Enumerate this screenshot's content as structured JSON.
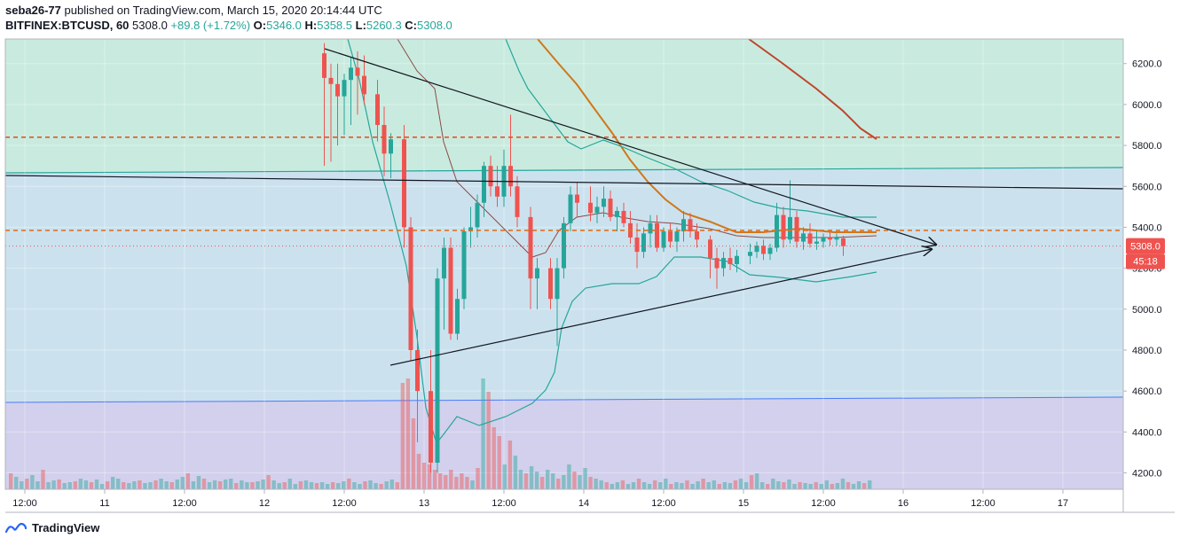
{
  "header": {
    "author": "seba26-77",
    "published_text": "published on TradingView.com, March 15, 2020 20:14:44 UTC",
    "symbol": "BITFINEX:BTCUSD, 60",
    "last": "5308.0",
    "change": "+89.8 (+1.72%)",
    "o_label": "O:",
    "o": "5346.0",
    "h_label": "H:",
    "h": "5358.5",
    "l_label": "L:",
    "l": "5260.3",
    "c_label": "C:",
    "c": "5308.0"
  },
  "footer": {
    "brand": "TradingView"
  },
  "colors": {
    "up": "#26a69a",
    "down": "#ef5350",
    "zone_top": "#c9ebdf",
    "zone_mid": "#cbe2ee",
    "zone_low": "#d2d0ec",
    "price_label_bg": "#ef5350"
  },
  "chart_data": {
    "type": "candlestick",
    "ylim": [
      4120,
      6320
    ],
    "y_ticks": [
      "6200.0",
      "6000.0",
      "5800.0",
      "5600.0",
      "5400.0",
      "5200.0",
      "5000.0",
      "4800.0",
      "4600.0",
      "4400.0",
      "4200.0"
    ],
    "x_ticks": [
      "12:00",
      "11",
      "12:00",
      "12",
      "12:00",
      "13",
      "12:00",
      "14",
      "12:00",
      "15",
      "12:00",
      "16",
      "12:00",
      "17"
    ],
    "last_price_label": "5308.0",
    "countdown_label": "45:18",
    "horizontal_levels": [
      {
        "name": "resistance-dashed",
        "value": 5840
      },
      {
        "name": "pivot-dashed",
        "value": 5385
      },
      {
        "name": "last-price-dotted",
        "value": 5308
      }
    ],
    "candles": [
      {
        "t": "12 09:00",
        "o": 6250,
        "h": 6300,
        "l": 5700,
        "c": 6130
      },
      {
        "t": "12 10:00",
        "o": 6130,
        "h": 6200,
        "l": 5720,
        "c": 6100
      },
      {
        "t": "12 11:00",
        "o": 6100,
        "h": 6200,
        "l": 5800,
        "c": 6040
      },
      {
        "t": "12 12:00",
        "o": 6040,
        "h": 6150,
        "l": 5850,
        "c": 6120
      },
      {
        "t": "12 13:00",
        "o": 6120,
        "h": 6230,
        "l": 5900,
        "c": 6180
      },
      {
        "t": "12 14:00",
        "o": 6180,
        "h": 6260,
        "l": 5950,
        "c": 6140
      },
      {
        "t": "12 15:00",
        "o": 6140,
        "h": 6240,
        "l": 6000,
        "c": 6050
      },
      {
        "t": "12 17:00",
        "o": 6050,
        "h": 6120,
        "l": 5820,
        "c": 5900
      },
      {
        "t": "12 18:00",
        "o": 5900,
        "h": 5990,
        "l": 5650,
        "c": 5760
      },
      {
        "t": "12 19:00",
        "o": 5760,
        "h": 5860,
        "l": 5640,
        "c": 5830
      },
      {
        "t": "12 21:00",
        "o": 5830,
        "h": 5900,
        "l": 5300,
        "c": 5400
      },
      {
        "t": "12 22:00",
        "o": 5400,
        "h": 5450,
        "l": 4750,
        "c": 4800
      },
      {
        "t": "12 23:00",
        "o": 4800,
        "h": 4900,
        "l": 4350,
        "c": 4600
      },
      {
        "t": "13 01:00",
        "o": 4600,
        "h": 4800,
        "l": 4200,
        "c": 4250
      },
      {
        "t": "13 02:00",
        "o": 4250,
        "h": 5200,
        "l": 4200,
        "c": 5150
      },
      {
        "t": "13 03:00",
        "o": 5150,
        "h": 5350,
        "l": 4900,
        "c": 5300
      },
      {
        "t": "13 04:00",
        "o": 5300,
        "h": 5350,
        "l": 4850,
        "c": 4880
      },
      {
        "t": "13 05:00",
        "o": 4880,
        "h": 5100,
        "l": 4850,
        "c": 5050
      },
      {
        "t": "13 06:00",
        "o": 5050,
        "h": 5400,
        "l": 5000,
        "c": 5380
      },
      {
        "t": "13 07:00",
        "o": 5380,
        "h": 5500,
        "l": 5300,
        "c": 5400
      },
      {
        "t": "13 08:00",
        "o": 5400,
        "h": 5560,
        "l": 5350,
        "c": 5520
      },
      {
        "t": "13 09:00",
        "o": 5520,
        "h": 5720,
        "l": 5450,
        "c": 5700
      },
      {
        "t": "13 10:00",
        "o": 5700,
        "h": 5750,
        "l": 5550,
        "c": 5600
      },
      {
        "t": "13 11:00",
        "o": 5600,
        "h": 5700,
        "l": 5500,
        "c": 5550
      },
      {
        "t": "13 12:00",
        "o": 5550,
        "h": 5780,
        "l": 5500,
        "c": 5700
      },
      {
        "t": "13 13:00",
        "o": 5700,
        "h": 5950,
        "l": 5550,
        "c": 5600
      },
      {
        "t": "13 14:00",
        "o": 5600,
        "h": 5650,
        "l": 5400,
        "c": 5450
      },
      {
        "t": "13 16:00",
        "o": 5450,
        "h": 5500,
        "l": 5000,
        "c": 5150
      },
      {
        "t": "13 17:00",
        "o": 5150,
        "h": 5250,
        "l": 5000,
        "c": 5200
      },
      {
        "t": "13 19:00",
        "o": 5200,
        "h": 5250,
        "l": 5000,
        "c": 5050
      },
      {
        "t": "13 20:00",
        "o": 5050,
        "h": 5250,
        "l": 4820,
        "c": 5200
      },
      {
        "t": "13 21:00",
        "o": 5200,
        "h": 5450,
        "l": 5150,
        "c": 5420
      },
      {
        "t": "13 22:00",
        "o": 5420,
        "h": 5600,
        "l": 5380,
        "c": 5560
      },
      {
        "t": "13 23:00",
        "o": 5560,
        "h": 5620,
        "l": 5450,
        "c": 5520
      },
      {
        "t": "14 01:00",
        "o": 5520,
        "h": 5600,
        "l": 5430,
        "c": 5470
      },
      {
        "t": "14 02:00",
        "o": 5470,
        "h": 5550,
        "l": 5420,
        "c": 5500
      },
      {
        "t": "14 03:00",
        "o": 5500,
        "h": 5600,
        "l": 5450,
        "c": 5540
      },
      {
        "t": "14 04:00",
        "o": 5540,
        "h": 5580,
        "l": 5430,
        "c": 5450
      },
      {
        "t": "14 05:00",
        "o": 5450,
        "h": 5500,
        "l": 5380,
        "c": 5480
      },
      {
        "t": "14 06:00",
        "o": 5480,
        "h": 5520,
        "l": 5400,
        "c": 5420
      },
      {
        "t": "14 07:00",
        "o": 5420,
        "h": 5480,
        "l": 5320,
        "c": 5350
      },
      {
        "t": "14 08:00",
        "o": 5350,
        "h": 5420,
        "l": 5200,
        "c": 5280
      },
      {
        "t": "14 09:00",
        "o": 5280,
        "h": 5400,
        "l": 5250,
        "c": 5370
      },
      {
        "t": "14 10:00",
        "o": 5370,
        "h": 5460,
        "l": 5300,
        "c": 5420
      },
      {
        "t": "14 11:00",
        "o": 5420,
        "h": 5460,
        "l": 5280,
        "c": 5300
      },
      {
        "t": "14 12:00",
        "o": 5300,
        "h": 5400,
        "l": 5280,
        "c": 5380
      },
      {
        "t": "14 13:00",
        "o": 5380,
        "h": 5420,
        "l": 5300,
        "c": 5330
      },
      {
        "t": "14 14:00",
        "o": 5330,
        "h": 5400,
        "l": 5280,
        "c": 5380
      },
      {
        "t": "14 15:00",
        "o": 5380,
        "h": 5480,
        "l": 5330,
        "c": 5440
      },
      {
        "t": "14 16:00",
        "o": 5440,
        "h": 5470,
        "l": 5350,
        "c": 5380
      },
      {
        "t": "14 17:00",
        "o": 5380,
        "h": 5420,
        "l": 5300,
        "c": 5340
      },
      {
        "t": "14 19:00",
        "o": 5340,
        "h": 5360,
        "l": 5150,
        "c": 5250
      },
      {
        "t": "14 20:00",
        "o": 5250,
        "h": 5300,
        "l": 5100,
        "c": 5200
      },
      {
        "t": "14 21:00",
        "o": 5200,
        "h": 5280,
        "l": 5160,
        "c": 5250
      },
      {
        "t": "14 22:00",
        "o": 5250,
        "h": 5300,
        "l": 5190,
        "c": 5220
      },
      {
        "t": "14 23:00",
        "o": 5220,
        "h": 5290,
        "l": 5180,
        "c": 5260
      },
      {
        "t": "15 01:00",
        "o": 5260,
        "h": 5320,
        "l": 5220,
        "c": 5280
      },
      {
        "t": "15 02:00",
        "o": 5280,
        "h": 5330,
        "l": 5250,
        "c": 5310
      },
      {
        "t": "15 03:00",
        "o": 5310,
        "h": 5340,
        "l": 5240,
        "c": 5270
      },
      {
        "t": "15 04:00",
        "o": 5270,
        "h": 5320,
        "l": 5240,
        "c": 5300
      },
      {
        "t": "15 05:00",
        "o": 5300,
        "h": 5520,
        "l": 5280,
        "c": 5460
      },
      {
        "t": "15 06:00",
        "o": 5460,
        "h": 5500,
        "l": 5300,
        "c": 5340
      },
      {
        "t": "15 07:00",
        "o": 5340,
        "h": 5630,
        "l": 5320,
        "c": 5450
      },
      {
        "t": "15 08:00",
        "o": 5450,
        "h": 5480,
        "l": 5300,
        "c": 5330
      },
      {
        "t": "15 09:00",
        "o": 5330,
        "h": 5400,
        "l": 5290,
        "c": 5370
      },
      {
        "t": "15 10:00",
        "o": 5370,
        "h": 5420,
        "l": 5300,
        "c": 5320
      },
      {
        "t": "15 11:00",
        "o": 5320,
        "h": 5380,
        "l": 5290,
        "c": 5330
      },
      {
        "t": "15 12:00",
        "o": 5330,
        "h": 5370,
        "l": 5300,
        "c": 5350
      },
      {
        "t": "15 13:00",
        "o": 5350,
        "h": 5380,
        "l": 5310,
        "c": 5340
      },
      {
        "t": "15 14:00",
        "o": 5340,
        "h": 5370,
        "l": 5310,
        "c": 5350
      },
      {
        "t": "15 15:00",
        "o": 5346,
        "h": 5358.5,
        "l": 5260.3,
        "c": 5308
      }
    ]
  }
}
